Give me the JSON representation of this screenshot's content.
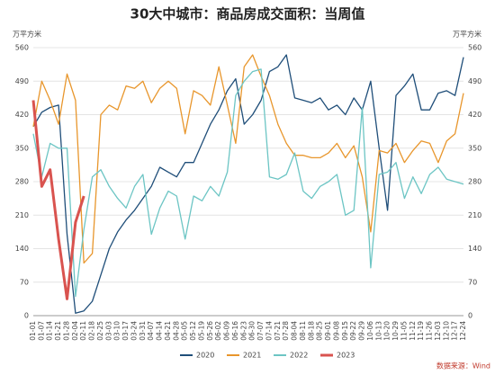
{
  "chart_data": {
    "type": "line",
    "title": "30大中城市：商品房成交面积：当周值",
    "y_label": "万平方米",
    "source": "数据来源：Wind",
    "categories": [
      "01-01",
      "01-07",
      "01-14",
      "01-21",
      "01-28",
      "02-04",
      "02-11",
      "02-18",
      "02-25",
      "03-03",
      "03-10",
      "03-17",
      "03-24",
      "03-31",
      "04-07",
      "04-14",
      "04-21",
      "04-28",
      "05-05",
      "05-12",
      "05-19",
      "05-26",
      "06-02",
      "06-09",
      "06-16",
      "06-23",
      "06-30",
      "07-07",
      "07-14",
      "07-21",
      "07-28",
      "08-04",
      "08-11",
      "08-18",
      "08-25",
      "09-01",
      "09-08",
      "09-15",
      "09-22",
      "09-29",
      "10-06",
      "10-13",
      "10-20",
      "10-29",
      "11-05",
      "11-12",
      "11-19",
      "11-26",
      "12-03",
      "12-10",
      "12-17",
      "12-24"
    ],
    "series": [
      {
        "name": "2020",
        "color": "#1f4e79",
        "values": [
          395,
          425,
          435,
          440,
          170,
          5,
          10,
          30,
          85,
          140,
          175,
          200,
          220,
          245,
          270,
          310,
          300,
          290,
          320,
          320,
          360,
          400,
          430,
          470,
          495,
          400,
          420,
          450,
          510,
          520,
          545,
          455,
          450,
          445,
          455,
          430,
          440,
          420,
          455,
          430,
          490,
          350,
          220,
          460,
          480,
          505,
          430,
          430,
          465,
          470,
          460,
          540
        ]
      },
      {
        "name": "2021",
        "color": "#e8962c",
        "values": [
          395,
          490,
          450,
          400,
          505,
          450,
          110,
          130,
          420,
          440,
          430,
          480,
          475,
          490,
          445,
          475,
          490,
          475,
          380,
          470,
          460,
          440,
          520,
          440,
          360,
          520,
          545,
          500,
          460,
          400,
          360,
          335,
          335,
          330,
          330,
          340,
          360,
          330,
          355,
          290,
          175,
          345,
          340,
          360,
          320,
          345,
          365,
          360,
          320,
          365,
          380,
          465
        ]
      },
      {
        "name": "2022",
        "color": "#6cc5c4",
        "values": [
          380,
          290,
          360,
          350,
          350,
          40,
          180,
          290,
          305,
          270,
          245,
          225,
          270,
          295,
          170,
          225,
          260,
          250,
          160,
          250,
          240,
          270,
          250,
          300,
          460,
          490,
          510,
          515,
          290,
          285,
          295,
          340,
          260,
          245,
          270,
          280,
          295,
          210,
          220,
          435,
          100,
          295,
          300,
          320,
          245,
          290,
          255,
          295,
          310,
          285,
          280,
          275
        ]
      },
      {
        "name": "2023",
        "color": "#d9534f",
        "values": [
          450,
          270,
          305,
          160,
          35,
          195,
          250,
          null,
          null,
          null,
          null,
          null,
          null,
          null,
          null,
          null,
          null,
          null,
          null,
          null,
          null,
          null,
          null,
          null,
          null,
          null,
          null,
          null,
          null,
          null,
          null,
          null,
          null,
          null,
          null,
          null,
          null,
          null,
          null,
          null,
          null,
          null,
          null,
          null,
          null,
          null,
          null,
          null,
          null,
          null,
          null,
          null
        ]
      }
    ],
    "ylim": [
      0,
      560
    ],
    "yticks": [
      0,
      70,
      140,
      210,
      280,
      350,
      420,
      490,
      560
    ],
    "grid": true
  }
}
